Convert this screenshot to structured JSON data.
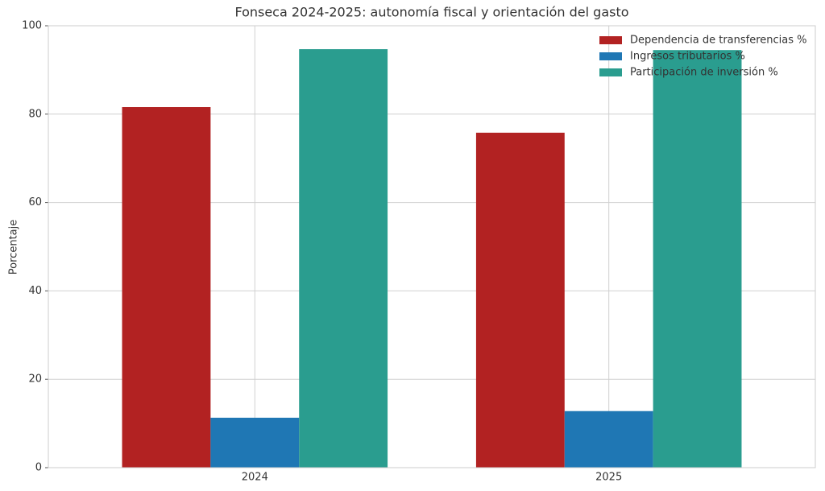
{
  "chart_data": {
    "type": "bar",
    "title": "Fonseca 2024-2025: autonomía fiscal y orientación del gasto",
    "y_label": "Porcentaje",
    "categories": [
      "2024",
      "2025"
    ],
    "series": [
      {
        "name": "Dependencia de transferencias %",
        "color": "#b22222",
        "values": [
          81.6,
          75.8
        ]
      },
      {
        "name": "Ingresos tributarios %",
        "color": "#1f77b4",
        "values": [
          11.3,
          12.8
        ]
      },
      {
        "name": "Participación de inversión %",
        "color": "#2a9d8f",
        "values": [
          94.7,
          94.5
        ]
      }
    ],
    "ylim": [
      0,
      100
    ],
    "yticks": [
      0,
      20,
      40,
      60,
      80,
      100
    ],
    "grid": true,
    "legend": "upper-right"
  }
}
